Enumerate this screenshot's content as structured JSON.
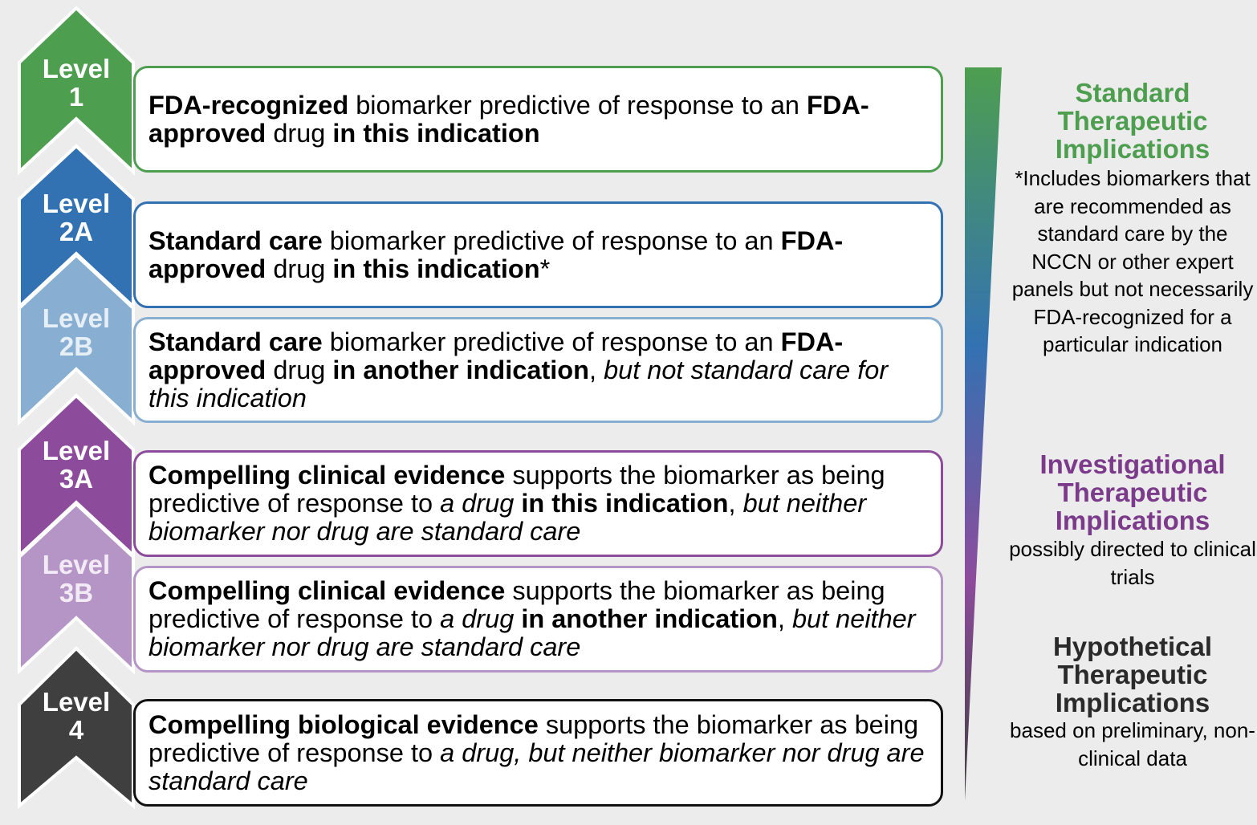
{
  "levels": [
    {
      "id": "1",
      "label_line1": "Level",
      "label_line2": "1",
      "color": "#4e9e50",
      "segments": [
        [
          "FDA-recognized",
          "b"
        ],
        [
          " biomarker predictive of response to an ",
          ""
        ],
        [
          "FDA-approved",
          "b"
        ],
        [
          " drug ",
          ""
        ],
        [
          "in this indication",
          "b"
        ]
      ]
    },
    {
      "id": "2A",
      "label_line1": "Level",
      "label_line2": "2A",
      "color": "#3372b2",
      "segments": [
        [
          "Standard care",
          "b"
        ],
        [
          " biomarker predictive of response to an ",
          ""
        ],
        [
          "FDA-approved",
          "b"
        ],
        [
          " drug ",
          ""
        ],
        [
          "in this indication",
          "b"
        ],
        [
          "*",
          ""
        ]
      ]
    },
    {
      "id": "2B",
      "label_line1": "Level",
      "label_line2": "2B",
      "color": "#88afd2",
      "segments": [
        [
          "Standard care",
          "b"
        ],
        [
          " biomarker predictive of response to an ",
          ""
        ],
        [
          "FDA-approved",
          "b"
        ],
        [
          " drug ",
          ""
        ],
        [
          "in another indication",
          "b"
        ],
        [
          ", ",
          ""
        ],
        [
          "but not standard care for this indication",
          "i"
        ]
      ]
    },
    {
      "id": "3A",
      "label_line1": "Level",
      "label_line2": "3A",
      "color": "#8d4b9c",
      "segments": [
        [
          "Compelling clinical evidence",
          "b"
        ],
        [
          " supports the biomarker as being predictive of response to ",
          ""
        ],
        [
          "a drug",
          "i"
        ],
        [
          " ",
          ""
        ],
        [
          "in this indication",
          "b"
        ],
        [
          ", ",
          ""
        ],
        [
          "but neither biomarker nor drug are standard care",
          "i"
        ]
      ]
    },
    {
      "id": "3B",
      "label_line1": "Level",
      "label_line2": "3B",
      "color": "#b595c6",
      "segments": [
        [
          "Compelling clinical evidence",
          "b"
        ],
        [
          " supports the biomarker as being predictive of response to ",
          ""
        ],
        [
          "a drug",
          "i"
        ],
        [
          " ",
          ""
        ],
        [
          "in another indication",
          "b"
        ],
        [
          ", ",
          ""
        ],
        [
          "but neither biomarker nor drug are standard care",
          "i"
        ]
      ]
    },
    {
      "id": "4",
      "label_line1": "Level",
      "label_line2": "4",
      "color": "#3f3f3f",
      "segments": [
        [
          "Compelling biological evidence",
          "b"
        ],
        [
          " supports the biomarker as being predictive of response to ",
          ""
        ],
        [
          "a drug, but neither biomarker nor drug are standard care",
          "i"
        ]
      ]
    }
  ],
  "categories": {
    "standard": {
      "heading_line1": "Standard",
      "heading_line2": "Therapeutic",
      "heading_line3": "Implications",
      "color": "#4e9e50",
      "description": "*Includes biomarkers that are recommended as standard care by the NCCN or other expert panels but not necessarily FDA-recognized for a particular indication"
    },
    "investigational": {
      "heading_line1": "Investigational",
      "heading_line2": "Therapeutic",
      "heading_line3": "Implications",
      "color": "#7b3a8a",
      "description": "possibly directed to clinical trials"
    },
    "hypothetical": {
      "heading_line1": "Hypothetical",
      "heading_line2": "Therapeutic",
      "heading_line3": "Implications",
      "color": "#2a2a2a",
      "description": "based on preliminary, non-clinical data"
    }
  },
  "gradient_colors": [
    "#4e9e50",
    "#3372b2",
    "#8d4b9c",
    "#3f3f3f"
  ]
}
